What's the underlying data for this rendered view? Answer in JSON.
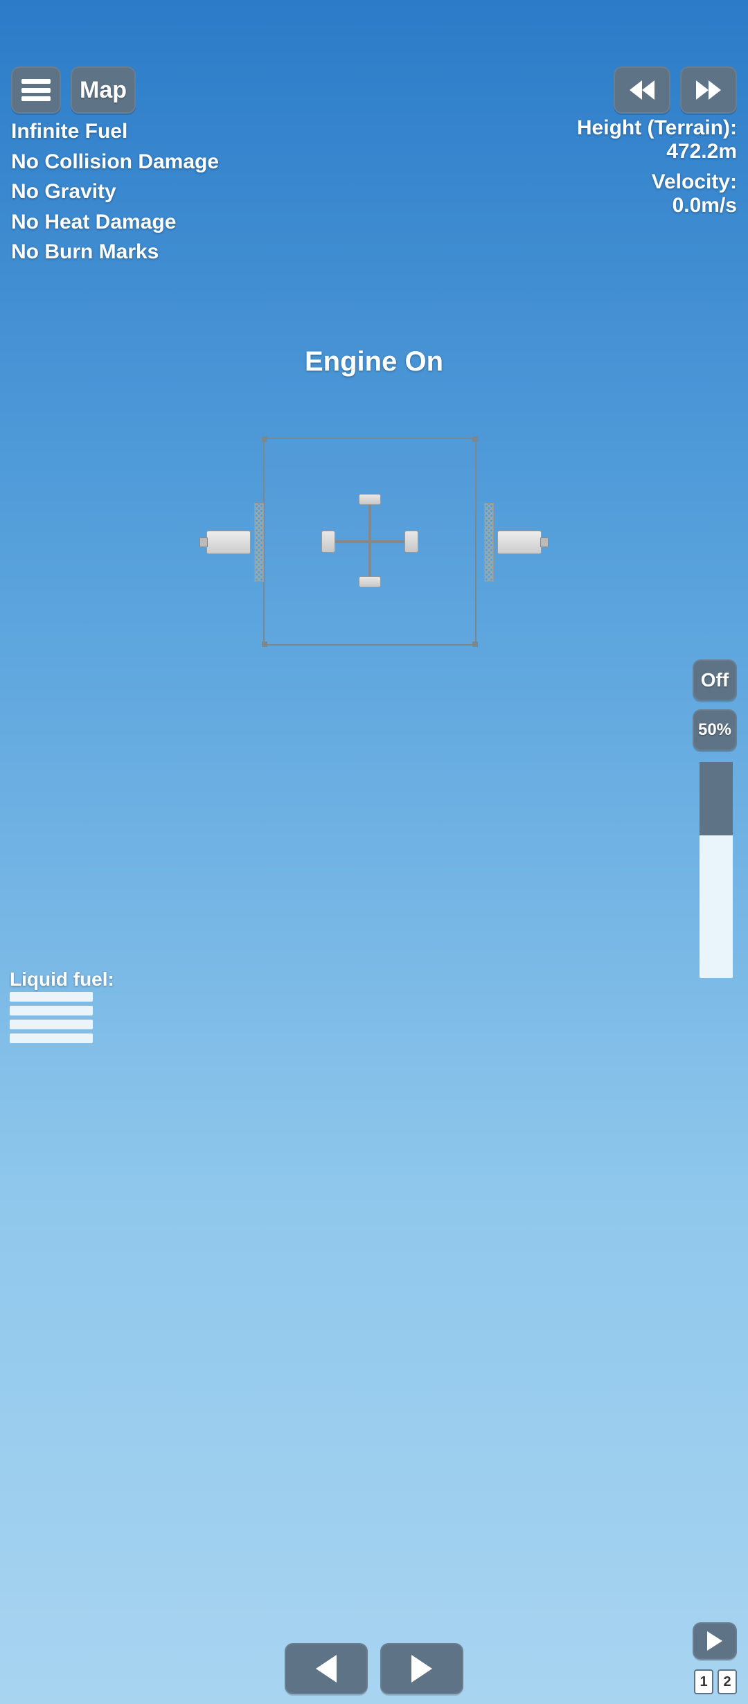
{
  "colors": {
    "button_bg": "#5e7486",
    "button_fg": "#ffffff",
    "sky_top": "#2b7bc8",
    "sky_bottom": "#a8d4f0",
    "throttle_track": "#eaf4fb",
    "throttle_fill": "#5e7486"
  },
  "top": {
    "map_label": "Map"
  },
  "cheats": [
    "Infinite Fuel",
    "No Collision Damage",
    "No Gravity",
    "No Heat Damage",
    "No Burn Marks"
  ],
  "telemetry": {
    "height_label": "Height (Terrain):",
    "height_value": "472.2m",
    "velocity_label": "Velocity:",
    "velocity_value": "0.0m/s"
  },
  "message": "Engine On",
  "throttle": {
    "off_label": "Off",
    "half_label": "50%",
    "fill_pct": 34
  },
  "fuel": {
    "label": "Liquid fuel:",
    "bars": [
      100,
      100,
      100,
      100
    ]
  },
  "stages": [
    "1",
    "2"
  ]
}
